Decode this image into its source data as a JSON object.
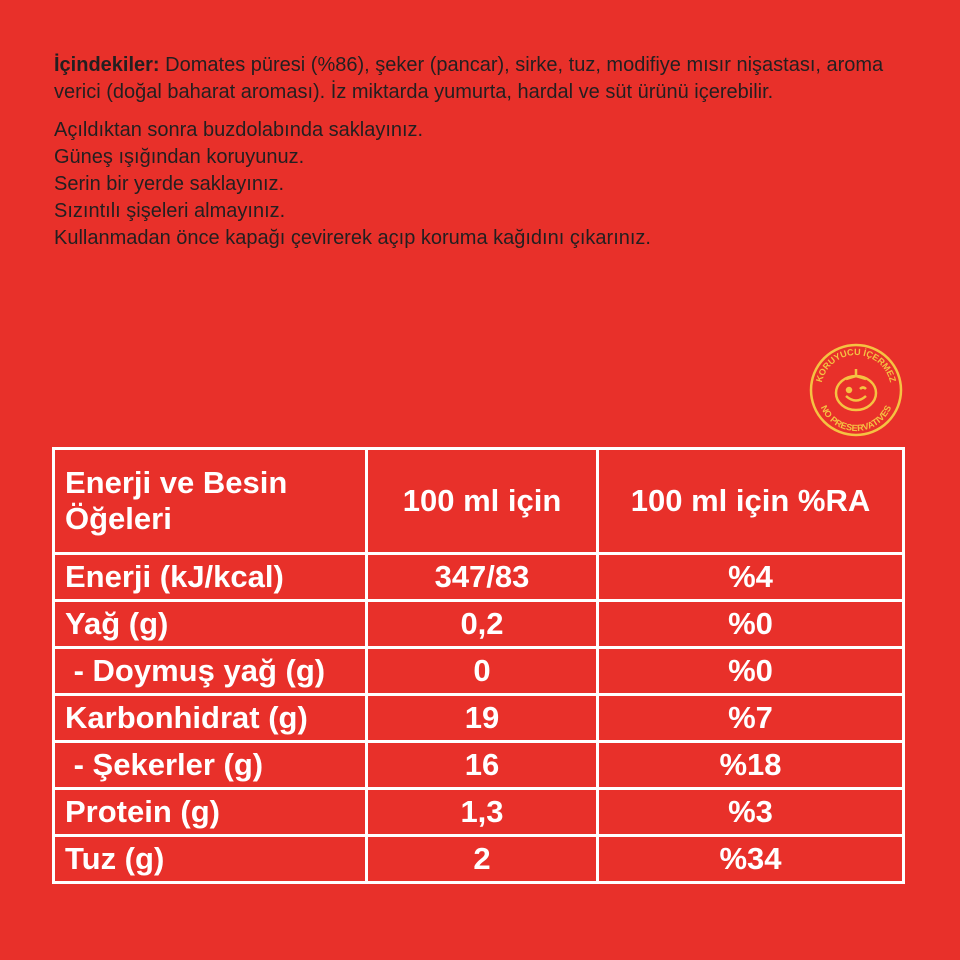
{
  "ingredients": {
    "label": "İçindekiler:",
    "text": " Domates püresi (%86), şeker (pancar), sirke, tuz, modifiye mısır nişastası, aroma verici (doğal baharat aroması). İz miktarda yumurta, hardal ve süt ürünü içerebilir."
  },
  "instructions": [
    "Açıldıktan sonra buzdolabında saklayınız.",
    "Güneş ışığından koruyunuz.",
    "Serin bir yerde saklayınız.",
    "Sızıntılı şişeleri almayınız.",
    "Kullanmadan önce kapağı çevirerek açıp koruma kağıdını çıkarınız."
  ],
  "badge": {
    "top": "KORUYUCU İÇERMEZ",
    "bottom": "NO PRESERVATIVES",
    "icon": "smiling-tomato-icon"
  },
  "table": {
    "headers": [
      "Enerji ve Besin Öğeleri",
      "100 ml için",
      "100 ml için %RA"
    ],
    "rows": [
      [
        "Enerji (kJ/kcal)",
        "347/83",
        "%4"
      ],
      [
        "Yağ (g)",
        "0,2",
        "%0"
      ],
      [
        " - Doymuş yağ (g)",
        "0",
        "%0"
      ],
      [
        "Karbonhidrat (g)",
        "19",
        "%7"
      ],
      [
        " - Şekerler (g)",
        "16",
        "%18"
      ],
      [
        "Protein (g)",
        "1,3",
        "%3"
      ],
      [
        "Tuz (g)",
        "2",
        "%34"
      ]
    ]
  },
  "colors": {
    "background": "#e8302a",
    "text": "#231f20",
    "table": "#ffffff",
    "badge": "#f5c242"
  }
}
